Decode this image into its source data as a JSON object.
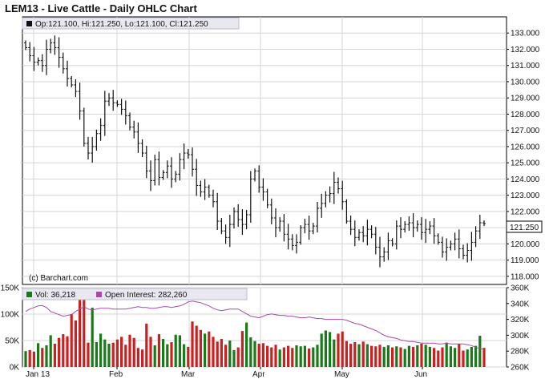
{
  "chart_data": [
    {
      "type": "ohlc",
      "title": "LEM13 - Live Cattle - Daily OHLC Chart",
      "legend_quote": "Op:121.100, Hi:121.250, Lo:121.100, Cl:121.250",
      "last_price_label": "121.250",
      "watermark": "(c) Barchart.com",
      "ylim": [
        117.5,
        134.0
      ],
      "y_ticks": [
        "118.000",
        "119.000",
        "120.000",
        "121.000",
        "122.000",
        "123.000",
        "124.000",
        "125.000",
        "126.000",
        "127.000",
        "128.000",
        "129.000",
        "130.000",
        "131.000",
        "132.000",
        "133.000"
      ],
      "x_ticks": [
        "Jan 13",
        "Feb",
        "Mar",
        "Apr",
        "May",
        "Jun"
      ],
      "grid": true,
      "closes": [
        132.1,
        131.6,
        131.2,
        131.3,
        131.0,
        132.0,
        132.4,
        132.1,
        131.5,
        130.8,
        130.2,
        129.8,
        129.4,
        128.2,
        126.2,
        125.6,
        126.0,
        126.8,
        127.3,
        128.8,
        129.0,
        128.7,
        128.6,
        128.3,
        127.9,
        127.2,
        126.9,
        126.2,
        125.6,
        124.5,
        123.9,
        125.2,
        124.1,
        124.4,
        124.8,
        124.0,
        124.3,
        125.2,
        125.6,
        125.5,
        124.6,
        123.6,
        123.2,
        123.5,
        123.0,
        122.6,
        121.4,
        120.8,
        120.4,
        121.2,
        122.0,
        121.5,
        121.2,
        121.8,
        124.0,
        124.5,
        123.5,
        123.2,
        122.4,
        121.6,
        121.0,
        121.4,
        120.6,
        120.3,
        119.9,
        120.1,
        121.0,
        121.2,
        120.8,
        121.1,
        122.2,
        122.5,
        123.0,
        123.1,
        123.8,
        123.4,
        122.6,
        121.4,
        120.9,
        120.4,
        120.7,
        120.5,
        120.9,
        120.6,
        119.8,
        119.2,
        119.5,
        120.2,
        120.0,
        121.1,
        120.9,
        121.2,
        121.3,
        121.0,
        121.2,
        120.7,
        120.9,
        121.1,
        120.5,
        120.1,
        119.5,
        119.8,
        120.0,
        120.3,
        119.7,
        119.3,
        119.6,
        120.1,
        120.8,
        121.3,
        121.25
      ],
      "volume_panel": {
        "legend_vol": "Vol: 36,218",
        "legend_oi": "Open Interest: 282,260",
        "left_ticks": [
          "0K",
          "50K",
          "100K",
          "150K"
        ],
        "right_ticks": [
          "260K",
          "280K",
          "300K",
          "320K",
          "340K",
          "360K"
        ],
        "vol_range": [
          0,
          150000
        ],
        "oi_range": [
          260000,
          360000
        ],
        "colors": {
          "up": "#1a7a1a",
          "down": "#cc1f1f",
          "oi": "#a64ca6"
        },
        "volume": [
          30000,
          32000,
          29000,
          45000,
          36000,
          41000,
          60000,
          44000,
          55000,
          62000,
          58000,
          100000,
          88000,
          135000,
          128000,
          46000,
          112000,
          47000,
          63000,
          52000,
          44000,
          46000,
          52000,
          57000,
          42000,
          61000,
          55000,
          36000,
          33000,
          82000,
          57000,
          41000,
          62000,
          53000,
          43000,
          47000,
          61000,
          60000,
          43000,
          38000,
          86000,
          78000,
          70000,
          63000,
          67000,
          57000,
          48000,
          53000,
          42000,
          50000,
          32000,
          37000,
          68000,
          84000,
          56000,
          49000,
          44000,
          45000,
          40000,
          37000,
          42000,
          33000,
          37000,
          40000,
          36000,
          41000,
          39000,
          40000,
          35000,
          37000,
          42000,
          63000,
          69000,
          66000,
          52000,
          63000,
          67000,
          49000,
          44000,
          47000,
          43000,
          48000,
          43000,
          40000,
          39000,
          42000,
          38000,
          41000,
          37000,
          39000,
          37000,
          34000,
          40000,
          38000,
          41000,
          44000,
          42000,
          38000,
          36000,
          31000,
          37000,
          46000,
          39000,
          36000,
          44000,
          31000,
          33000,
          38000,
          40000,
          59000,
          36218
        ],
        "oi": [
          330000,
          333000,
          335000,
          337000,
          337500,
          335000,
          330000,
          328000,
          326000,
          324000,
          325000,
          326000,
          330000,
          333000,
          336000,
          333000,
          332000,
          333000,
          334000,
          334000,
          334000,
          333000,
          333000,
          333000,
          333000,
          334000,
          335000,
          336000,
          335000,
          335000,
          334000,
          334000,
          335000,
          336000,
          336000,
          335000,
          336000,
          337000,
          339000,
          342000,
          343000,
          342000,
          341000,
          339000,
          337000,
          334000,
          332000,
          331000,
          332000,
          333000,
          333000,
          333000,
          330000,
          327000,
          324000,
          323000,
          322000,
          324000,
          326000,
          327000,
          326000,
          325000,
          325000,
          324000,
          324000,
          323000,
          322000,
          322000,
          323000,
          322000,
          321000,
          321000,
          320000,
          320000,
          320000,
          320000,
          320000,
          319000,
          317000,
          315000,
          314000,
          312000,
          310000,
          308000,
          306000,
          303000,
          300000,
          298000,
          297000,
          296000,
          294000,
          293000,
          292000,
          292000,
          291000,
          290000,
          290000,
          290000,
          290000,
          289000,
          289000,
          290000,
          289000,
          289000,
          289000,
          289000,
          288000,
          287000,
          285000,
          283000,
          282260
        ]
      }
    }
  ]
}
